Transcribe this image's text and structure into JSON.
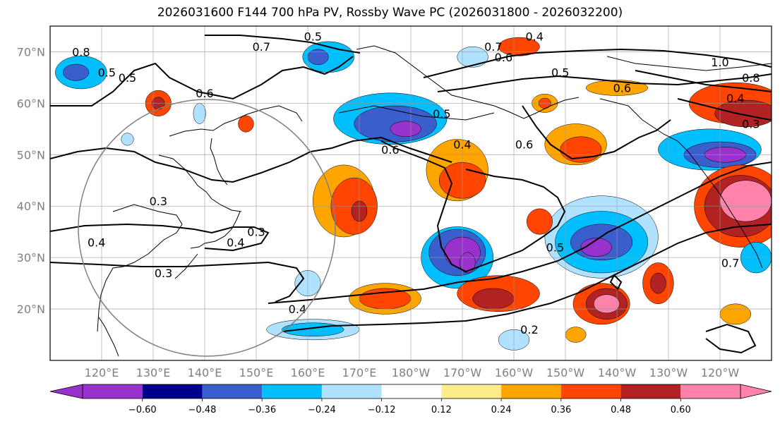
{
  "title": "2026031600 F144 700 hPa PV, Rossby Wave PC (2026031800 - 2026032200)",
  "map": {
    "lon_min": 110,
    "lon_max": 250,
    "lat_min": 10,
    "lat_max": 75,
    "lat_labels": [
      {
        "lat": 70,
        "text": "70°N"
      },
      {
        "lat": 60,
        "text": "60°N"
      },
      {
        "lat": 50,
        "text": "50°N"
      },
      {
        "lat": 40,
        "text": "40°N"
      },
      {
        "lat": 30,
        "text": "30°N"
      },
      {
        "lat": 20,
        "text": "20°N"
      }
    ],
    "lon_labels": [
      {
        "lon": 120,
        "text": "120°E"
      },
      {
        "lon": 130,
        "text": "130°E"
      },
      {
        "lon": 140,
        "text": "140°E"
      },
      {
        "lon": 150,
        "text": "150°E"
      },
      {
        "lon": 160,
        "text": "160°E"
      },
      {
        "lon": 170,
        "text": "170°E"
      },
      {
        "lon": 180,
        "text": "180°W"
      },
      {
        "lon": 190,
        "text": "170°W"
      },
      {
        "lon": 200,
        "text": "160°W"
      },
      {
        "lon": 210,
        "text": "150°W"
      },
      {
        "lon": 220,
        "text": "140°W"
      },
      {
        "lon": 230,
        "text": "130°W"
      },
      {
        "lon": 240,
        "text": "120°W"
      }
    ]
  },
  "colorbar": {
    "colors": [
      "#9932cc",
      "#00008b",
      "#3a5fcd",
      "#00bfff",
      "#b0e2ff",
      "#ffffff",
      "#ffec8b",
      "#ffa500",
      "#ff4500",
      "#b22222",
      "#ff82ab"
    ],
    "ticks": [
      "−0.60",
      "−0.48",
      "−0.36",
      "−0.24",
      "−0.12",
      "0.12",
      "0.24",
      "0.36",
      "0.48",
      "0.60"
    ]
  },
  "pc_anomalies": [
    {
      "lon": 116,
      "lat": 66,
      "rx": 5,
      "ry": 3.2,
      "v": -0.36
    },
    {
      "lon": 115,
      "lat": 66,
      "rx": 2.5,
      "ry": 1.6,
      "v": -0.48
    },
    {
      "lon": 164,
      "lat": 69,
      "rx": 5,
      "ry": 3,
      "v": -0.36
    },
    {
      "lon": 162,
      "lat": 69,
      "rx": 2,
      "ry": 1.5,
      "v": -0.48
    },
    {
      "lon": 192,
      "lat": 69,
      "rx": 3,
      "ry": 2,
      "v": -0.24
    },
    {
      "lon": 131,
      "lat": 60,
      "rx": 2.5,
      "ry": 2.5,
      "v": 0.36
    },
    {
      "lon": 131,
      "lat": 60,
      "rx": 1.2,
      "ry": 1.2,
      "v": 0.48
    },
    {
      "lon": 139,
      "lat": 58,
      "rx": 1.2,
      "ry": 2,
      "v": -0.24
    },
    {
      "lon": 148,
      "lat": 56,
      "rx": 1.5,
      "ry": 1.6,
      "v": 0.36
    },
    {
      "lon": 176,
      "lat": 57,
      "rx": 11,
      "ry": 5,
      "v": -0.36
    },
    {
      "lon": 177,
      "lat": 56,
      "rx": 8,
      "ry": 3.5,
      "v": -0.48
    },
    {
      "lon": 179,
      "lat": 55,
      "rx": 3,
      "ry": 1.5,
      "v": -0.6
    },
    {
      "lon": 206,
      "lat": 60,
      "rx": 2.5,
      "ry": 1.8,
      "v": 0.24
    },
    {
      "lon": 206,
      "lat": 60,
      "rx": 1.2,
      "ry": 1,
      "v": 0.36
    },
    {
      "lon": 201,
      "lat": 71,
      "rx": 4,
      "ry": 1.8,
      "v": 0.36
    },
    {
      "lon": 220,
      "lat": 63,
      "rx": 6,
      "ry": 1.5,
      "v": 0.24
    },
    {
      "lon": 243,
      "lat": 60,
      "rx": 9,
      "ry": 4,
      "v": 0.36
    },
    {
      "lon": 245,
      "lat": 58,
      "rx": 6,
      "ry": 2.6,
      "v": 0.48
    },
    {
      "lon": 212,
      "lat": 52,
      "rx": 6,
      "ry": 4,
      "v": 0.24
    },
    {
      "lon": 213,
      "lat": 51,
      "rx": 4,
      "ry": 2.5,
      "v": 0.36
    },
    {
      "lon": 238,
      "lat": 51,
      "rx": 10,
      "ry": 4,
      "v": -0.36
    },
    {
      "lon": 240,
      "lat": 50,
      "rx": 7,
      "ry": 2.5,
      "v": -0.48
    },
    {
      "lon": 241,
      "lat": 50,
      "rx": 4,
      "ry": 1.5,
      "v": -0.6
    },
    {
      "lon": 167,
      "lat": 41,
      "rx": 6,
      "ry": 7,
      "v": 0.24
    },
    {
      "lon": 169,
      "lat": 40,
      "rx": 4.5,
      "ry": 5.5,
      "v": 0.36
    },
    {
      "lon": 170,
      "lat": 39,
      "rx": 1.5,
      "ry": 2,
      "v": 0.48
    },
    {
      "lon": 189,
      "lat": 47,
      "rx": 6,
      "ry": 6,
      "v": 0.24
    },
    {
      "lon": 190,
      "lat": 45,
      "rx": 4.5,
      "ry": 3.5,
      "v": 0.36
    },
    {
      "lon": 189,
      "lat": 30,
      "rx": 7,
      "ry": 6,
      "v": -0.36
    },
    {
      "lon": 189,
      "lat": 31,
      "rx": 5.5,
      "ry": 4.5,
      "v": -0.48
    },
    {
      "lon": 190,
      "lat": 31,
      "rx": 3.5,
      "ry": 3,
      "v": -0.6
    },
    {
      "lon": 191,
      "lat": 29,
      "rx": 1.5,
      "ry": 2,
      "v": -0.6
    },
    {
      "lon": 217,
      "lat": 34,
      "rx": 11,
      "ry": 8,
      "v": -0.24
    },
    {
      "lon": 217,
      "lat": 33,
      "rx": 9,
      "ry": 6,
      "v": -0.36
    },
    {
      "lon": 217,
      "lat": 33,
      "rx": 6,
      "ry": 3.5,
      "v": -0.48
    },
    {
      "lon": 216,
      "lat": 32,
      "rx": 3,
      "ry": 1.8,
      "v": -0.6
    },
    {
      "lon": 244,
      "lat": 40,
      "rx": 9,
      "ry": 8,
      "v": 0.36
    },
    {
      "lon": 244,
      "lat": 40,
      "rx": 7,
      "ry": 6,
      "v": 0.48
    },
    {
      "lon": 245,
      "lat": 41,
      "rx": 5,
      "ry": 4,
      "v": 0.6
    },
    {
      "lon": 175,
      "lat": 22,
      "rx": 7,
      "ry": 3,
      "v": 0.24
    },
    {
      "lon": 175,
      "lat": 22,
      "rx": 5,
      "ry": 2,
      "v": 0.36
    },
    {
      "lon": 197,
      "lat": 23,
      "rx": 8,
      "ry": 3.5,
      "v": 0.36
    },
    {
      "lon": 196,
      "lat": 22,
      "rx": 4,
      "ry": 2,
      "v": 0.48
    },
    {
      "lon": 217,
      "lat": 21,
      "rx": 5.5,
      "ry": 4,
      "v": 0.36
    },
    {
      "lon": 218,
      "lat": 21,
      "rx": 4,
      "ry": 3,
      "v": 0.48
    },
    {
      "lon": 218,
      "lat": 21,
      "rx": 2.5,
      "ry": 1.8,
      "v": 0.6
    },
    {
      "lon": 228,
      "lat": 25,
      "rx": 3,
      "ry": 4,
      "v": 0.36
    },
    {
      "lon": 228,
      "lat": 25,
      "rx": 1.5,
      "ry": 2,
      "v": 0.48
    },
    {
      "lon": 161,
      "lat": 16,
      "rx": 9,
      "ry": 2,
      "v": -0.24
    },
    {
      "lon": 161,
      "lat": 16,
      "rx": 6,
      "ry": 1.3,
      "v": -0.36
    },
    {
      "lon": 160,
      "lat": 25,
      "rx": 2.5,
      "ry": 2.5,
      "v": -0.24
    },
    {
      "lon": 205,
      "lat": 37,
      "rx": 2.5,
      "ry": 2.5,
      "v": 0.36
    },
    {
      "lon": 200,
      "lat": 14,
      "rx": 3,
      "ry": 2,
      "v": -0.24
    },
    {
      "lon": 125,
      "lat": 53,
      "rx": 1.2,
      "ry": 1.2,
      "v": -0.24
    },
    {
      "lon": 247,
      "lat": 30,
      "rx": 3,
      "ry": 3,
      "v": -0.36
    },
    {
      "lon": 243,
      "lat": 19,
      "rx": 3,
      "ry": 2,
      "v": 0.24
    },
    {
      "lon": 212,
      "lat": 15,
      "rx": 2,
      "ry": 1.5,
      "v": 0.24
    }
  ],
  "contour_labels": [
    {
      "lon": 116,
      "lat": 70,
      "text": "0.8"
    },
    {
      "lon": 121,
      "lat": 66,
      "text": "0.5"
    },
    {
      "lon": 125,
      "lat": 65,
      "text": "0.5"
    },
    {
      "lon": 151,
      "lat": 71,
      "text": "0.7"
    },
    {
      "lon": 161,
      "lat": 73,
      "text": "0.5"
    },
    {
      "lon": 140,
      "lat": 62,
      "text": "0.6"
    },
    {
      "lon": 196,
      "lat": 71,
      "text": "0.7"
    },
    {
      "lon": 198,
      "lat": 69,
      "text": "0.6"
    },
    {
      "lon": 204,
      "lat": 73,
      "text": "0.4"
    },
    {
      "lon": 209,
      "lat": 66,
      "text": "0.5"
    },
    {
      "lon": 221,
      "lat": 63,
      "text": "0.6"
    },
    {
      "lon": 240,
      "lat": 68,
      "text": "1.0"
    },
    {
      "lon": 246,
      "lat": 65,
      "text": "0.8"
    },
    {
      "lon": 243,
      "lat": 61,
      "text": "0.4"
    },
    {
      "lon": 246,
      "lat": 56,
      "text": "0.3"
    },
    {
      "lon": 186,
      "lat": 58,
      "text": "0.5"
    },
    {
      "lon": 176,
      "lat": 51,
      "text": "0.6"
    },
    {
      "lon": 190,
      "lat": 52,
      "text": "0.4"
    },
    {
      "lon": 202,
      "lat": 52,
      "text": "0.6"
    },
    {
      "lon": 208,
      "lat": 32,
      "text": "0.5"
    },
    {
      "lon": 131,
      "lat": 41,
      "text": "0.3"
    },
    {
      "lon": 150,
      "lat": 35,
      "text": "0.3"
    },
    {
      "lon": 146,
      "lat": 33,
      "text": "0.4"
    },
    {
      "lon": 119,
      "lat": 33,
      "text": "0.4"
    },
    {
      "lon": 132,
      "lat": 27,
      "text": "0.3"
    },
    {
      "lon": 158,
      "lat": 20,
      "text": "0.4"
    },
    {
      "lon": 203,
      "lat": 16,
      "text": "0.2"
    },
    {
      "lon": 242,
      "lat": 29,
      "text": "0.7"
    }
  ]
}
